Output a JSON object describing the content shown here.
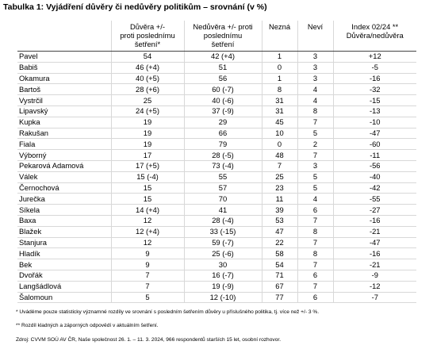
{
  "title": "Tabulka 1: Vyjádření důvěry či nedůvěry politikům – srovnání (v %)",
  "table": {
    "header": [
      [
        "Důvěra +/-",
        "proti poslednímu",
        "šetření*"
      ],
      [
        "Nedůvěra +/- proti",
        "poslednímu",
        "šetření"
      ],
      [
        "Nezná"
      ],
      [
        "Neví"
      ],
      [
        "Index 02/24 **",
        "Důvěra/nedůvěra"
      ]
    ],
    "rows": [
      [
        "Pavel",
        "54",
        "42 (+4)",
        "1",
        "3",
        "+12"
      ],
      [
        "Babiš",
        "46 (+4)",
        "51",
        "0",
        "3",
        "-5"
      ],
      [
        "Okamura",
        "40 (+5)",
        "56",
        "1",
        "3",
        "-16"
      ],
      [
        "Bartoš",
        "28 (+6)",
        "60 (-7)",
        "8",
        "4",
        "-32"
      ],
      [
        "Vystrčil",
        "25",
        "40 (-6)",
        "31",
        "4",
        "-15"
      ],
      [
        "Lipavský",
        "24 (+5)",
        "37 (-9)",
        "31",
        "8",
        "-13"
      ],
      [
        "Kupka",
        "19",
        "29",
        "45",
        "7",
        "-10"
      ],
      [
        "Rakušan",
        "19",
        "66",
        "10",
        "5",
        "-47"
      ],
      [
        "Fiala",
        "19",
        "79",
        "0",
        "2",
        "-60"
      ],
      [
        "Výborný",
        "17",
        "28 (-5)",
        "48",
        "7",
        "-11"
      ],
      [
        "Pekarová Adamová",
        "17 (+5)",
        "73 (-4)",
        "7",
        "3",
        "-56"
      ],
      [
        "Válek",
        "15 (-4)",
        "55",
        "25",
        "5",
        "-40"
      ],
      [
        "Černochová",
        "15",
        "57",
        "23",
        "5",
        "-42"
      ],
      [
        "Jurečka",
        "15",
        "70",
        "11",
        "4",
        "-55"
      ],
      [
        "Síkela",
        "14 (+4)",
        "41",
        "39",
        "6",
        "-27"
      ],
      [
        "Baxa",
        "12",
        "28 (-4)",
        "53",
        "7",
        "-16"
      ],
      [
        "Blažek",
        "12 (+4)",
        "33 (-15)",
        "47",
        "8",
        "-21"
      ],
      [
        "Stanjura",
        "12",
        "59 (-7)",
        "22",
        "7",
        "-47"
      ],
      [
        "Hladík",
        "9",
        "25 (-6)",
        "58",
        "8",
        "-16"
      ],
      [
        "Bek",
        "9",
        "30",
        "54",
        "7",
        "-21"
      ],
      [
        "Dvořák",
        "7",
        "16 (-7)",
        "71",
        "6",
        "-9"
      ],
      [
        "Langšádlová",
        "7",
        "19 (-9)",
        "67",
        "7",
        "-12"
      ],
      [
        "Šalomoun",
        "5",
        "12 (-10)",
        "77",
        "6",
        "-7"
      ]
    ]
  },
  "notes": [
    "* Uváděme pouze statisticky významné rozdíly ve srovnání s posledním šetřením důvěry u příslušného politika, tj. více než +/- 3 %.",
    "** Rozdíl kladných a záporných odpovědí v aktuálním šetření.",
    "Zdroj: CVVM SOÚ AV ČR, Naše společnost 26. 1. – 11. 3. 2024, 966 respondentů starších 15 let, osobní rozhovor."
  ]
}
